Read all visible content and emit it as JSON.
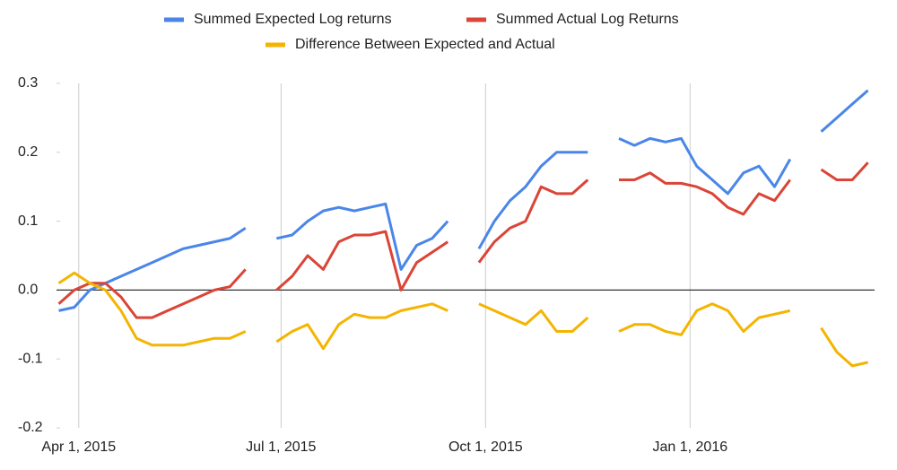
{
  "chart_data": {
    "type": "line",
    "x": [
      "2015-03-23",
      "2015-03-30",
      "2015-04-06",
      "2015-04-13",
      "2015-04-20",
      "2015-04-27",
      "2015-05-04",
      "2015-05-11",
      "2015-05-18",
      "2015-05-25",
      "2015-06-01",
      "2015-06-08",
      "2015-06-15",
      "2015-06-22",
      "2015-06-29",
      "2015-07-06",
      "2015-07-13",
      "2015-07-20",
      "2015-07-27",
      "2015-08-03",
      "2015-08-10",
      "2015-08-17",
      "2015-08-24",
      "2015-08-31",
      "2015-09-07",
      "2015-09-14",
      "2015-09-21",
      "2015-09-28",
      "2015-10-05",
      "2015-10-12",
      "2015-10-19",
      "2015-10-26",
      "2015-11-02",
      "2015-11-09",
      "2015-11-16",
      "2015-11-23",
      "2015-11-30",
      "2015-12-07",
      "2015-12-14",
      "2015-12-21",
      "2015-12-28",
      "2016-01-04",
      "2016-01-11",
      "2016-01-18",
      "2016-01-25",
      "2016-02-01",
      "2016-02-08",
      "2016-02-15",
      "2016-02-22",
      "2016-02-29",
      "2016-03-07",
      "2016-03-14",
      "2016-03-21"
    ],
    "series": [
      {
        "name": "Summed Expected Log returns",
        "color": "#4a86e8",
        "values": [
          -0.03,
          -0.025,
          0.0,
          0.01,
          0.02,
          0.03,
          0.04,
          0.05,
          0.06,
          0.065,
          0.07,
          0.075,
          0.09,
          null,
          0.075,
          0.08,
          0.1,
          0.115,
          0.12,
          0.115,
          0.12,
          0.125,
          0.03,
          0.065,
          0.075,
          0.1,
          null,
          0.06,
          0.1,
          0.13,
          0.15,
          0.18,
          0.2,
          0.2,
          0.2,
          null,
          0.22,
          0.21,
          0.22,
          0.215,
          0.22,
          0.18,
          0.16,
          0.14,
          0.17,
          0.18,
          0.15,
          0.19,
          null,
          0.23,
          0.25,
          0.27,
          0.29
        ]
      },
      {
        "name": "Summed Actual Log Returns",
        "color": "#db4437",
        "values": [
          -0.02,
          0.0,
          0.01,
          0.01,
          -0.01,
          -0.04,
          -0.04,
          -0.03,
          -0.02,
          -0.01,
          0.0,
          0.005,
          0.03,
          null,
          0.0,
          0.02,
          0.05,
          0.03,
          0.07,
          0.08,
          0.08,
          0.085,
          0.0,
          0.04,
          0.055,
          0.07,
          null,
          0.04,
          0.07,
          0.09,
          0.1,
          0.15,
          0.14,
          0.14,
          0.16,
          null,
          0.16,
          0.16,
          0.17,
          0.155,
          0.155,
          0.15,
          0.14,
          0.12,
          0.11,
          0.14,
          0.13,
          0.16,
          null,
          0.175,
          0.16,
          0.16,
          0.185
        ]
      },
      {
        "name": "Difference Between Expected and Actual",
        "color": "#f4b400",
        "values": [
          0.01,
          0.025,
          0.01,
          0.0,
          -0.03,
          -0.07,
          -0.08,
          -0.08,
          -0.08,
          -0.075,
          -0.07,
          -0.07,
          -0.06,
          null,
          -0.075,
          -0.06,
          -0.05,
          -0.085,
          -0.05,
          -0.035,
          -0.04,
          -0.04,
          -0.03,
          -0.025,
          -0.02,
          -0.03,
          null,
          -0.02,
          -0.03,
          -0.04,
          -0.05,
          -0.03,
          -0.06,
          -0.06,
          -0.04,
          null,
          -0.06,
          -0.05,
          -0.05,
          -0.06,
          -0.065,
          -0.03,
          -0.02,
          -0.03,
          -0.06,
          -0.04,
          -0.035,
          -0.03,
          null,
          -0.055,
          -0.09,
          -0.11,
          -0.105
        ]
      }
    ],
    "xlim": [
      "2015-03-22",
      "2016-03-24"
    ],
    "xticks": [
      {
        "value": "2015-04-01",
        "label": "Apr 1, 2015"
      },
      {
        "value": "2015-07-01",
        "label": "Jul 1, 2015"
      },
      {
        "value": "2015-10-01",
        "label": "Oct 1, 2015"
      },
      {
        "value": "2016-01-01",
        "label": "Jan 1, 2016"
      }
    ],
    "ylim": [
      -0.2,
      0.3
    ],
    "yticks": [
      0.3,
      0.2,
      0.1,
      {
        "value": 0,
        "label": "0.0"
      },
      -0.1,
      -0.2
    ],
    "xgrid": true,
    "legend": "top"
  }
}
